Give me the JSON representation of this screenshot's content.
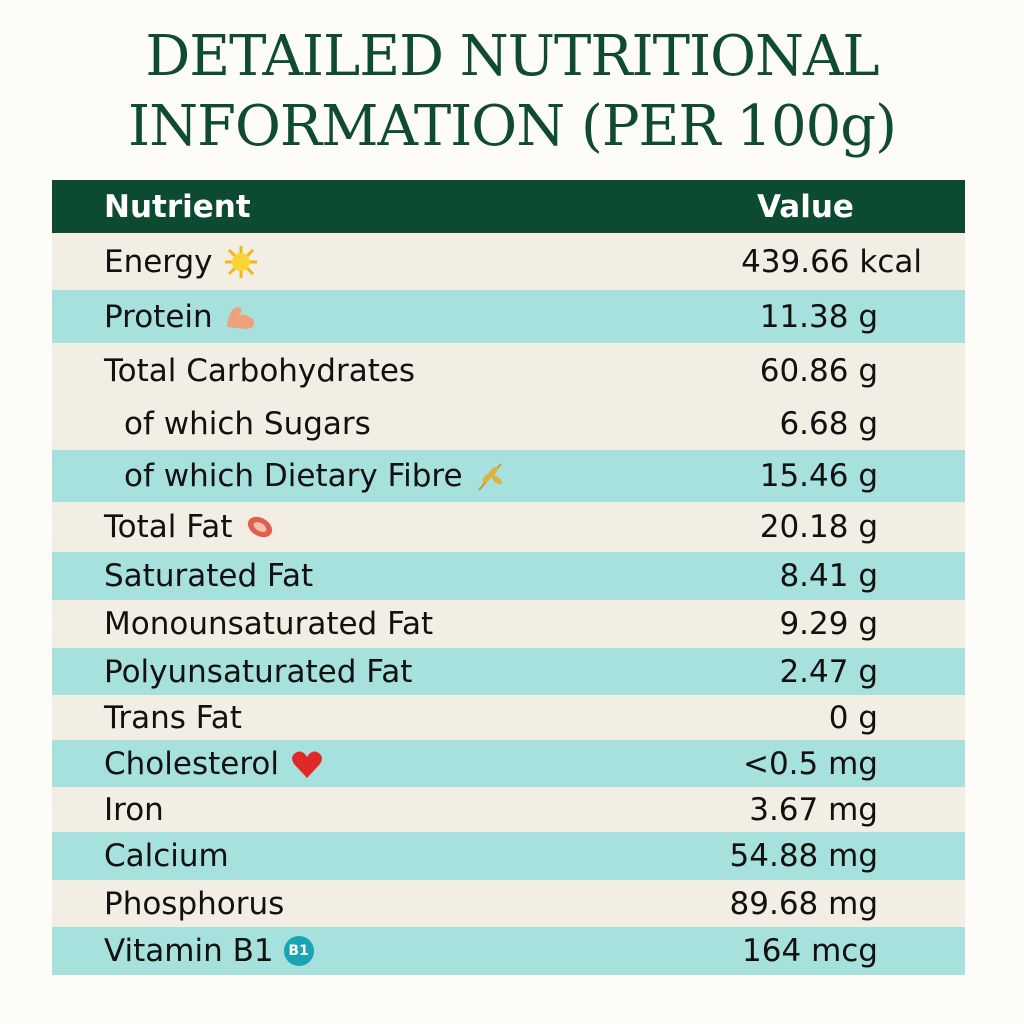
{
  "header": {
    "title_line1": "DETAILED NUTRITIONAL",
    "title_line2": "INFORMATION (PER 100g)"
  },
  "table": {
    "columns": [
      "Nutrient",
      "Value"
    ],
    "rows": [
      [
        "Energy",
        "439.66 kcal"
      ],
      [
        "Protein",
        "11.38 g"
      ],
      [
        "Total Carbohydrates",
        "60.86 g"
      ],
      [
        "of which Sugars",
        "6.68 g"
      ],
      [
        "of which Dietary Fibre",
        "15.46 g"
      ],
      [
        "Total Fat",
        "20.18 g"
      ],
      [
        "Saturated Fat",
        "8.41 g"
      ],
      [
        "Monounsaturated Fat",
        "9.29 g"
      ],
      [
        "Polyunsaturated Fat",
        "2.47 g"
      ],
      [
        "Trans Fat",
        "0 g"
      ],
      [
        "Cholesterol",
        "<0.5 mg"
      ],
      [
        "Iron",
        "3.67 mg"
      ],
      [
        "Calcium",
        "54.88 mg"
      ],
      [
        "Phosphorus",
        "89.68 mg"
      ],
      [
        "Vitamin B1",
        "164 mcg"
      ]
    ],
    "vitamin_badge": "B1"
  }
}
